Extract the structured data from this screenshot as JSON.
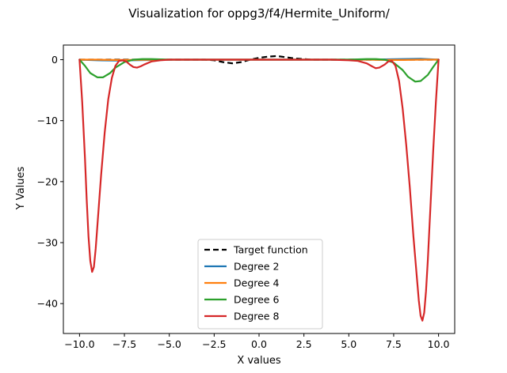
{
  "chart_data": {
    "type": "line",
    "title": "Visualization for oppg3/f4/Hermite_Uniform/",
    "xlabel": "X values",
    "ylabel": "Y Values",
    "xlim": [
      -10.9,
      10.9
    ],
    "ylim": [
      -44.9,
      2.4
    ],
    "xticks": [
      -10.0,
      -7.5,
      -5.0,
      -2.5,
      0.0,
      2.5,
      5.0,
      7.5,
      10.0
    ],
    "xtick_labels": [
      "−10.0",
      "−7.5",
      "−5.0",
      "−2.5",
      "0.0",
      "2.5",
      "5.0",
      "7.5",
      "10.0"
    ],
    "yticks": [
      0,
      -10,
      -20,
      -30,
      -40
    ],
    "ytick_labels": [
      "0",
      "−10",
      "−20",
      "−30",
      "−40"
    ],
    "grid": false,
    "legend_position": "lower-center",
    "series": [
      {
        "name": "Target function",
        "color": "#000000",
        "style": "dashed",
        "x": [
          -10,
          -8,
          -6,
          -4,
          -3,
          -2.5,
          -2,
          -1.5,
          -1,
          -0.5,
          0,
          0.5,
          1,
          1.5,
          2,
          2.5,
          3,
          4,
          6,
          8,
          10
        ],
        "y": [
          0,
          0,
          0,
          0,
          0,
          -0.1,
          -0.4,
          -0.6,
          -0.4,
          0,
          0.3,
          0.5,
          0.6,
          0.4,
          0.2,
          0.1,
          0,
          0,
          0,
          0,
          0
        ]
      },
      {
        "name": "Degree 2",
        "color": "#1f77b4",
        "style": "solid",
        "x": [
          -10,
          -9,
          -8,
          -7,
          -6,
          -5,
          -4,
          -3,
          -2,
          -1,
          0,
          1,
          2,
          3,
          4,
          5,
          6,
          7,
          8,
          9,
          10
        ],
        "y": [
          0,
          -0.1,
          -0.15,
          -0.1,
          -0.05,
          0,
          0,
          0,
          0,
          0,
          0,
          0,
          0,
          0,
          0,
          0,
          0,
          0.05,
          0.1,
          0.15,
          0
        ]
      },
      {
        "name": "Degree 4",
        "color": "#ff7f0e",
        "style": "solid",
        "x": [
          -10,
          -9,
          -8,
          -7,
          -6,
          -5,
          -4,
          -3,
          -2,
          -1,
          0,
          1,
          2,
          3,
          4,
          5,
          6,
          7,
          8,
          9,
          10
        ],
        "y": [
          0,
          0,
          -0.05,
          -0.05,
          0,
          0,
          0,
          0,
          0,
          0,
          0,
          0,
          0,
          0,
          0,
          0,
          0,
          -0.05,
          -0.05,
          0,
          0
        ]
      },
      {
        "name": "Degree 6",
        "color": "#2ca02c",
        "style": "solid",
        "x": [
          -10,
          -9.7,
          -9.4,
          -9.0,
          -8.7,
          -8.3,
          -8.0,
          -7.5,
          -7.0,
          -6.5,
          -6.0,
          -5.0,
          -4.0,
          -3.0,
          -2.0,
          -1.0,
          0.0,
          1.0,
          2.0,
          3.0,
          4.0,
          5.0,
          6.0,
          6.5,
          7.0,
          7.5,
          8.0,
          8.3,
          8.7,
          9.0,
          9.4,
          9.7,
          10.0
        ],
        "y": [
          0,
          -1.0,
          -2.2,
          -2.9,
          -2.9,
          -2.2,
          -1.3,
          -0.4,
          0,
          0.1,
          0.1,
          0,
          0,
          0,
          0,
          0,
          0,
          0,
          0,
          0,
          0,
          0,
          0.1,
          0.1,
          0,
          -0.5,
          -1.7,
          -2.8,
          -3.6,
          -3.5,
          -2.5,
          -1.2,
          0
        ]
      },
      {
        "name": "Degree 8",
        "color": "#d62728",
        "style": "solid",
        "x": [
          -10,
          -9.85,
          -9.7,
          -9.6,
          -9.5,
          -9.4,
          -9.3,
          -9.2,
          -9.1,
          -9.0,
          -8.9,
          -8.8,
          -8.6,
          -8.4,
          -8.2,
          -8.0,
          -7.8,
          -7.6,
          -7.4,
          -7.2,
          -7.0,
          -6.8,
          -6.6,
          -6.4,
          -6.0,
          -5.5,
          -5.0,
          -4.0,
          -3.0,
          -2.0,
          -1.0,
          0.0,
          1.0,
          2.0,
          3.0,
          4.0,
          5.0,
          5.5,
          6.0,
          6.3,
          6.5,
          6.7,
          7.0,
          7.2,
          7.4,
          7.6,
          7.8,
          8.0,
          8.2,
          8.4,
          8.6,
          8.8,
          8.9,
          9.0,
          9.1,
          9.2,
          9.3,
          9.4,
          9.5,
          9.6,
          9.7,
          9.85,
          10.0
        ],
        "y": [
          0,
          -7,
          -16,
          -23,
          -29,
          -33,
          -34.8,
          -34,
          -31,
          -27,
          -23,
          -19,
          -12,
          -6.5,
          -3.0,
          -1.0,
          -0.2,
          -0.1,
          -0.3,
          -0.8,
          -1.2,
          -1.3,
          -1.1,
          -0.8,
          -0.3,
          -0.1,
          0,
          0,
          0,
          0,
          0,
          0,
          0,
          0,
          0,
          0,
          -0.1,
          -0.2,
          -0.6,
          -1.1,
          -1.4,
          -1.3,
          -0.8,
          -0.3,
          -0.2,
          -1.0,
          -3.5,
          -8,
          -14,
          -21,
          -29,
          -36,
          -39.5,
          -42,
          -42.8,
          -41.5,
          -38,
          -33,
          -27,
          -21,
          -15,
          -7,
          0
        ]
      }
    ]
  }
}
